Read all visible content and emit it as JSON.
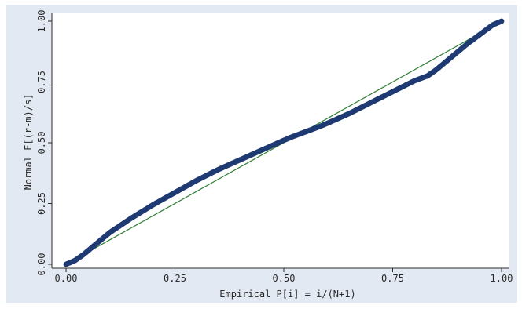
{
  "chart_data": {
    "type": "scatter",
    "title": "",
    "xlabel": "Empirical P[i] = i/(N+1)",
    "ylabel": "Normal F[(r-m)/s]",
    "xlim": [
      0,
      1
    ],
    "ylim": [
      0,
      1
    ],
    "grid": false,
    "x_ticks": [
      0,
      0.25,
      0.5,
      0.75,
      1
    ],
    "y_ticks": [
      0,
      0.25,
      0.5,
      0.75,
      1
    ],
    "x_tick_labels": [
      "0.00",
      "0.25",
      "0.50",
      "0.75",
      "1.00"
    ],
    "y_tick_labels": [
      "0.00",
      "0.25",
      "0.50",
      "0.75",
      "1.00"
    ],
    "reference_line": {
      "x": [
        0,
        1
      ],
      "y": [
        0,
        1
      ],
      "color": "#2e7d32"
    },
    "series": [
      {
        "color": "#1f3a73",
        "x": [
          0.0,
          0.02,
          0.04,
          0.06,
          0.08,
          0.1,
          0.15,
          0.2,
          0.25,
          0.3,
          0.35,
          0.4,
          0.45,
          0.5,
          0.52,
          0.55,
          0.58,
          0.6,
          0.65,
          0.7,
          0.75,
          0.8,
          0.83,
          0.85,
          0.88,
          0.9,
          0.92,
          0.95,
          0.98,
          1.0
        ],
        "y": [
          0.0,
          0.015,
          0.04,
          0.07,
          0.1,
          0.13,
          0.19,
          0.245,
          0.295,
          0.345,
          0.39,
          0.43,
          0.47,
          0.51,
          0.525,
          0.545,
          0.565,
          0.58,
          0.62,
          0.665,
          0.71,
          0.755,
          0.775,
          0.8,
          0.845,
          0.875,
          0.905,
          0.945,
          0.985,
          1.0
        ]
      }
    ]
  },
  "colors": {
    "frame_background": "#e3e9f2",
    "plot_background": "#ffffff",
    "points": "#1f3a73",
    "reference_line": "#2e7d32",
    "axis": "#2a2a2a"
  }
}
